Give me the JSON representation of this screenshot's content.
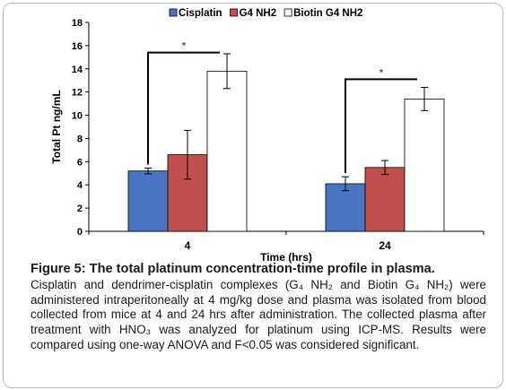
{
  "chart_data": {
    "type": "bar",
    "categories": [
      "4",
      "24"
    ],
    "series": [
      {
        "name": "Cisplatin",
        "color": "#4a76c1",
        "values": [
          5.2,
          4.1
        ],
        "errors": [
          0.25,
          0.6
        ]
      },
      {
        "name": "G4 NH2",
        "color": "#c0504d",
        "values": [
          6.6,
          5.5
        ],
        "errors": [
          2.1,
          0.6
        ]
      },
      {
        "name": "Biotin G4 NH2",
        "color": "#ffffff",
        "values": [
          13.8,
          11.4
        ],
        "errors": [
          1.5,
          1.0
        ]
      }
    ],
    "xlabel": "Time (hrs)",
    "ylabel": "Total Pt ng/mL",
    "ylim": [
      0,
      18
    ],
    "yticks": [
      "0",
      "2",
      "4",
      "6",
      "8",
      "10",
      "12",
      "14",
      "16",
      "18"
    ],
    "legend_position": "top",
    "grid": false,
    "annotations": [
      {
        "text": "*",
        "category": "4",
        "from_series": "Cisplatin",
        "to_series": "Biotin G4 NH2",
        "level": 15.4
      },
      {
        "text": "*",
        "category": "24",
        "from_series": "Cisplatin",
        "to_series": "Biotin G4 NH2",
        "level": 13.1
      }
    ]
  },
  "caption": {
    "title": "Figure 5: The total platinum concentration-time profile in plasma.",
    "text": "Cisplatin and dendrimer-cisplatin complexes (G₄ NH₂ and Biotin G₄ NH₂) were administered intraperitoneally at 4 mg/kg dose and plasma was isolated from blood collected from mice at 4 and 24 hrs after administration. The collected plasma after treatment with HNO₃ was analyzed for platinum using ICP-MS. Results were compared using one-way ANOVA and F<0.05 was considered significant."
  }
}
